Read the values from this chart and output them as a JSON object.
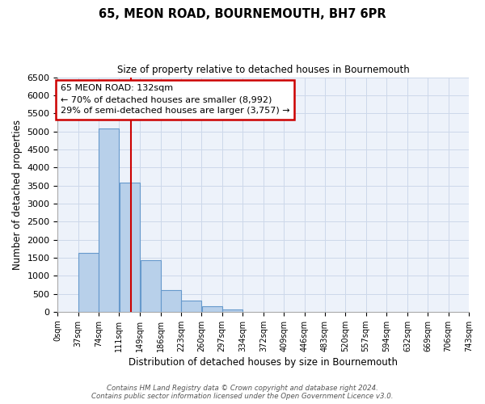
{
  "title": "65, MEON ROAD, BOURNEMOUTH, BH7 6PR",
  "subtitle": "Size of property relative to detached houses in Bournemouth",
  "xlabel": "Distribution of detached houses by size in Bournemouth",
  "ylabel": "Number of detached properties",
  "bin_labels": [
    "0sqm",
    "37sqm",
    "74sqm",
    "111sqm",
    "149sqm",
    "186sqm",
    "223sqm",
    "260sqm",
    "297sqm",
    "334sqm",
    "372sqm",
    "409sqm",
    "446sqm",
    "483sqm",
    "520sqm",
    "557sqm",
    "594sqm",
    "632sqm",
    "669sqm",
    "706sqm",
    "743sqm"
  ],
  "bar_values": [
    0,
    1630,
    5070,
    3580,
    1430,
    610,
    300,
    150,
    60,
    0,
    0,
    0,
    0,
    0,
    0,
    0,
    0,
    0,
    0,
    0
  ],
  "bar_color": "#b8d0ea",
  "bar_edge_color": "#6699cc",
  "ylim": [
    0,
    6500
  ],
  "yticks": [
    0,
    500,
    1000,
    1500,
    2000,
    2500,
    3000,
    3500,
    4000,
    4500,
    5000,
    5500,
    6000,
    6500
  ],
  "vline_x": 132,
  "vline_color": "#cc0000",
  "annotation_line1": "65 MEON ROAD: 132sqm",
  "annotation_line2": "← 70% of detached houses are smaller (8,992)",
  "annotation_line3": "29% of semi-detached houses are larger (3,757) →",
  "annotation_box_color": "#cc0000",
  "footer_line1": "Contains HM Land Registry data © Crown copyright and database right 2024.",
  "footer_line2": "Contains public sector information licensed under the Open Government Licence v3.0.",
  "bin_edges": [
    0,
    37,
    74,
    111,
    149,
    186,
    223,
    260,
    297,
    334,
    372,
    409,
    446,
    483,
    520,
    557,
    594,
    632,
    669,
    706,
    743
  ],
  "grid_color": "#cdd8ea",
  "background_color": "#edf2fa"
}
